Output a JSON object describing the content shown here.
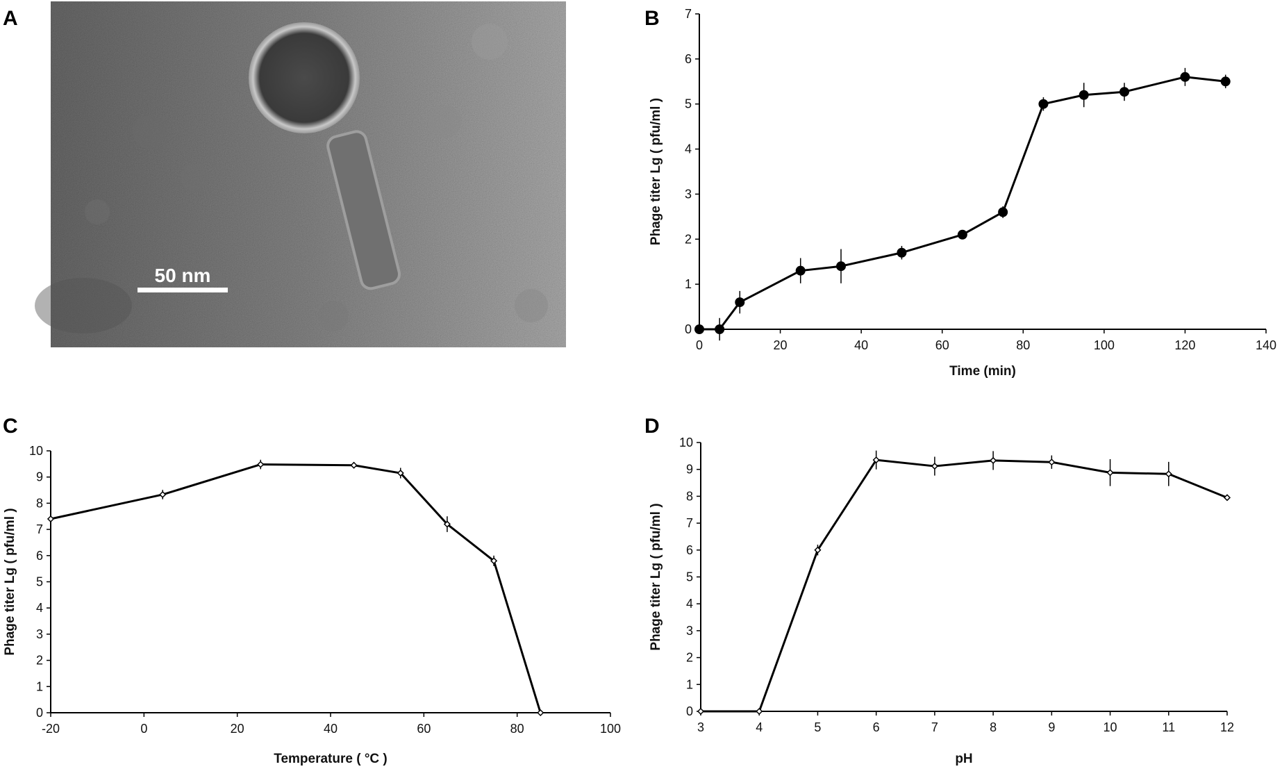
{
  "panels": {
    "A": {
      "letter": "A",
      "scale_bar_label": "50 nm"
    },
    "B": {
      "letter": "B"
    },
    "C": {
      "letter": "C"
    },
    "D": {
      "letter": "D"
    }
  },
  "colors": {
    "line": "#000000",
    "axis": "#000000",
    "micrograph_bg": "#8a8a8a"
  },
  "chart_data": [
    {
      "id": "B",
      "type": "line",
      "marker": "circle",
      "xlabel": "Time (min)",
      "ylabel": "Phage titer Lg ( pfu/ml )",
      "xlim": [
        0,
        140
      ],
      "ylim": [
        0,
        7
      ],
      "xticks": [
        0,
        20,
        40,
        60,
        80,
        100,
        120,
        140
      ],
      "yticks": [
        0,
        1,
        2,
        3,
        4,
        5,
        6,
        7
      ],
      "x": [
        0,
        5,
        10,
        25,
        35,
        50,
        65,
        75,
        85,
        95,
        105,
        120,
        130
      ],
      "y": [
        0,
        0,
        0.6,
        1.3,
        1.4,
        1.7,
        2.1,
        2.6,
        5.0,
        5.2,
        5.27,
        5.6,
        5.5
      ],
      "error": [
        0,
        0.25,
        0.25,
        0.28,
        0.38,
        0.15,
        0.08,
        0.13,
        0.15,
        0.27,
        0.2,
        0.2,
        0.15
      ]
    },
    {
      "id": "C",
      "type": "line",
      "marker": "diamond",
      "xlabel": "Temperature ( °C )",
      "ylabel": "Phage titer Lg ( pfu/ml )",
      "xlim": [
        -20,
        100
      ],
      "ylim": [
        0,
        10
      ],
      "xticks": [
        -20,
        0,
        20,
        40,
        60,
        80,
        100
      ],
      "yticks": [
        0,
        1,
        2,
        3,
        4,
        5,
        6,
        7,
        8,
        9,
        10
      ],
      "x": [
        -20,
        4,
        25,
        45,
        55,
        65,
        75,
        85
      ],
      "y": [
        7.4,
        8.33,
        9.48,
        9.45,
        9.15,
        7.2,
        5.8,
        0
      ],
      "error": [
        0,
        0.18,
        0.18,
        0.12,
        0.2,
        0.3,
        0.2,
        0
      ]
    },
    {
      "id": "D",
      "type": "line",
      "marker": "diamond",
      "xlabel": "pH",
      "ylabel": "Phage titer Lg ( pfu/ml )",
      "xlim": [
        3,
        12
      ],
      "ylim": [
        0,
        10
      ],
      "xticks": [
        3,
        4,
        5,
        6,
        7,
        8,
        9,
        10,
        11,
        12
      ],
      "yticks": [
        0,
        1,
        2,
        3,
        4,
        5,
        6,
        7,
        8,
        9,
        10
      ],
      "x": [
        3,
        4,
        5,
        6,
        7,
        8,
        9,
        10,
        11,
        12
      ],
      "y": [
        0,
        0,
        6.0,
        9.35,
        9.12,
        9.33,
        9.27,
        8.88,
        8.83,
        7.95
      ],
      "error": [
        0,
        0,
        0.2,
        0.35,
        0.35,
        0.35,
        0.25,
        0.5,
        0.45,
        0.05
      ]
    }
  ]
}
